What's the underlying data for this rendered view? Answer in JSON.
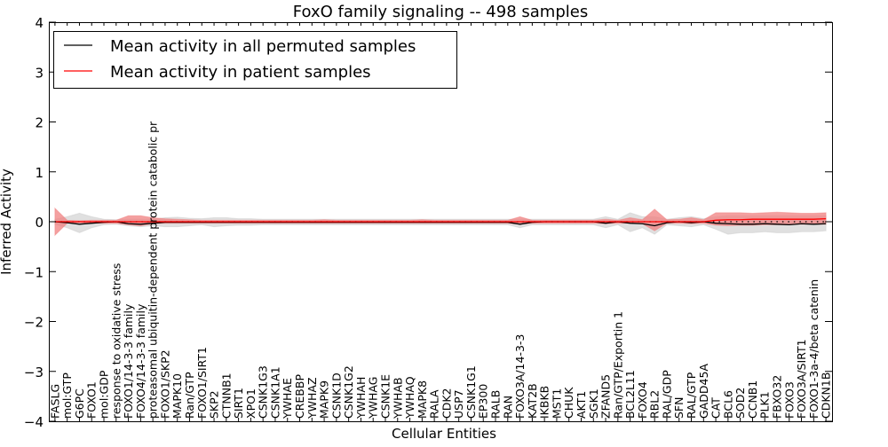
{
  "chart_data": {
    "type": "line",
    "title": "FoxO family signaling -- 498 samples",
    "xlabel": "Cellular Entities",
    "ylabel": "Inferred Activity",
    "ylim": [
      -4,
      4
    ],
    "yticks": [
      -4,
      -3,
      -2,
      -1,
      0,
      1,
      2,
      3,
      4
    ],
    "ytick_labels": [
      "−4",
      "−3",
      "−2",
      "−1",
      "0",
      "1",
      "2",
      "3",
      "4"
    ],
    "legend_position": "top-left",
    "grid": false,
    "x_tick_labels": [
      "FASLG",
      "mol:GTP",
      "G6PC",
      "FOXO1",
      "mol:GDP",
      "response to oxidative stress",
      "FOXO1/14-3-3 family",
      "FOXO4/14-3-3 family",
      "proteasomal ubiquitin-dependent protein catabolic pr",
      "FOXO1/SKP2",
      "MAPK10",
      "Ran/GTP",
      "FOXO1/SIRT1",
      "SKP2",
      "CTNNB1",
      "SIRT1",
      "XPO1",
      "CSNK1G3",
      "CSNK1A1",
      "YWHAE",
      "CREBBP",
      "YWHAZ",
      "MAPK9",
      "CSNK1D",
      "CSNK1G2",
      "YWHAH",
      "YWHAG",
      "CSNK1E",
      "YWHAB",
      "YWHAQ",
      "MAPK8",
      "RALA",
      "CDK2",
      "USP7",
      "CSNK1G1",
      "EP300",
      "RALB",
      "RAN",
      "FOXO3A/14-3-3",
      "KAT2B",
      "IKBKB",
      "MST1",
      "CHUK",
      "AKT1",
      "SGK1",
      "ZFAND5",
      "Ran/GTP/Exportin 1",
      "BCL2L11",
      "FOXO4",
      "RBL2",
      "RAL/GDP",
      "SFN",
      "RAL/GTP",
      "GADD45A",
      "CAT",
      "BCL6",
      "SOD2",
      "CCNB1",
      "PLK1",
      "FBXO32",
      "FOXO3",
      "FOXO3A/SIRT1",
      "FOXO1-3a-4/beta catenin",
      "CDKN1B"
    ],
    "series": [
      {
        "name": "Mean activity in all permuted samples",
        "color": "#000000",
        "band_color": "#cccccc",
        "values": [
          0,
          -0.02,
          -0.05,
          -0.03,
          -0.01,
          0,
          -0.04,
          -0.05,
          -0.03,
          -0.01,
          -0.01,
          -0.01,
          -0.01,
          -0.01,
          -0.01,
          -0.01,
          -0.01,
          -0.01,
          -0.01,
          -0.01,
          -0.01,
          -0.01,
          -0.01,
          -0.01,
          -0.01,
          -0.01,
          -0.01,
          -0.01,
          -0.01,
          -0.01,
          -0.01,
          -0.01,
          -0.01,
          -0.01,
          -0.01,
          -0.01,
          -0.01,
          -0.01,
          -0.05,
          -0.01,
          0,
          0,
          0,
          0,
          0,
          -0.03,
          0,
          -0.03,
          -0.04,
          -0.08,
          -0.02,
          0,
          -0.02,
          0,
          -0.03,
          -0.04,
          -0.05,
          -0.05,
          -0.04,
          -0.05,
          -0.06,
          -0.04,
          -0.05,
          -0.04
        ],
        "upper": [
          0.05,
          0.1,
          0.17,
          0.1,
          0.05,
          0.04,
          0.05,
          0.05,
          0.05,
          0.08,
          0.09,
          0.07,
          0.06,
          0.08,
          0.08,
          0.06,
          0.06,
          0.05,
          0.05,
          0.05,
          0.05,
          0.05,
          0.05,
          0.05,
          0.05,
          0.05,
          0.05,
          0.05,
          0.05,
          0.05,
          0.05,
          0.05,
          0.05,
          0.05,
          0.05,
          0.05,
          0.05,
          0.05,
          0.05,
          0.05,
          0.05,
          0.05,
          0.05,
          0.05,
          0.05,
          0.1,
          0.05,
          0.18,
          0.1,
          0.1,
          0.05,
          0.08,
          0.1,
          0.06,
          0.1,
          0.12,
          0.12,
          0.12,
          0.12,
          0.12,
          0.12,
          0.12,
          0.12,
          0.12
        ],
        "lower": [
          -0.05,
          -0.12,
          -0.22,
          -0.12,
          -0.06,
          -0.05,
          -0.08,
          -0.1,
          -0.08,
          -0.1,
          -0.1,
          -0.08,
          -0.06,
          -0.1,
          -0.08,
          -0.07,
          -0.07,
          -0.06,
          -0.06,
          -0.06,
          -0.06,
          -0.06,
          -0.06,
          -0.06,
          -0.06,
          -0.06,
          -0.06,
          -0.06,
          -0.06,
          -0.06,
          -0.06,
          -0.06,
          -0.06,
          -0.06,
          -0.06,
          -0.06,
          -0.06,
          -0.06,
          -0.12,
          -0.06,
          -0.06,
          -0.06,
          -0.06,
          -0.06,
          -0.06,
          -0.12,
          -0.06,
          -0.2,
          -0.12,
          -0.25,
          -0.06,
          -0.08,
          -0.1,
          -0.06,
          -0.15,
          -0.25,
          -0.22,
          -0.22,
          -0.2,
          -0.22,
          -0.22,
          -0.2,
          -0.2,
          -0.18
        ]
      },
      {
        "name": "Mean activity in patient samples",
        "color": "#ff0000",
        "band_color": "#f08080",
        "values": [
          0,
          0,
          0,
          0,
          0,
          0,
          0,
          0,
          0,
          0,
          0,
          0,
          0,
          0,
          0,
          0,
          0,
          0,
          0,
          0,
          0,
          0,
          0,
          0,
          0,
          0,
          0,
          0,
          0,
          0,
          0,
          0,
          0,
          0,
          0,
          0,
          0,
          0,
          0,
          0,
          0,
          0,
          0,
          0,
          0,
          0,
          0,
          0,
          0,
          0,
          0,
          0,
          0,
          0,
          0.03,
          0.04,
          0.04,
          0.05,
          0.05,
          0.05,
          0.05,
          0.05,
          0.05,
          0.06
        ],
        "upper": [
          0.27,
          0.03,
          0.02,
          0.03,
          0.03,
          0.03,
          0.12,
          0.12,
          0.08,
          0.06,
          0.05,
          0.04,
          0.03,
          0.03,
          0.03,
          0.03,
          0.03,
          0.03,
          0.03,
          0.03,
          0.03,
          0.03,
          0.04,
          0.03,
          0.03,
          0.03,
          0.03,
          0.03,
          0.03,
          0.03,
          0.04,
          0.03,
          0.03,
          0.03,
          0.03,
          0.03,
          0.03,
          0.03,
          0.1,
          0.03,
          0.03,
          0.03,
          0.03,
          0.03,
          0.03,
          0.05,
          0.03,
          0.08,
          0.04,
          0.25,
          0.04,
          0.05,
          0.08,
          0.04,
          0.18,
          0.18,
          0.18,
          0.17,
          0.18,
          0.19,
          0.18,
          0.17,
          0.17,
          0.18
        ],
        "lower": [
          -0.27,
          -0.03,
          -0.02,
          -0.03,
          -0.03,
          -0.03,
          -0.06,
          -0.08,
          -0.04,
          -0.03,
          -0.03,
          -0.03,
          -0.03,
          -0.03,
          -0.03,
          -0.03,
          -0.03,
          -0.03,
          -0.03,
          -0.03,
          -0.03,
          -0.03,
          -0.03,
          -0.03,
          -0.03,
          -0.03,
          -0.03,
          -0.03,
          -0.03,
          -0.03,
          -0.03,
          -0.03,
          -0.03,
          -0.03,
          -0.03,
          -0.03,
          -0.03,
          -0.03,
          -0.05,
          -0.03,
          -0.03,
          -0.03,
          -0.03,
          -0.03,
          -0.03,
          -0.04,
          -0.03,
          -0.03,
          -0.04,
          -0.18,
          -0.03,
          -0.03,
          -0.04,
          -0.03,
          -0.07,
          -0.08,
          -0.07,
          -0.07,
          -0.06,
          -0.06,
          -0.06,
          -0.05,
          -0.05,
          -0.05
        ]
      }
    ]
  }
}
